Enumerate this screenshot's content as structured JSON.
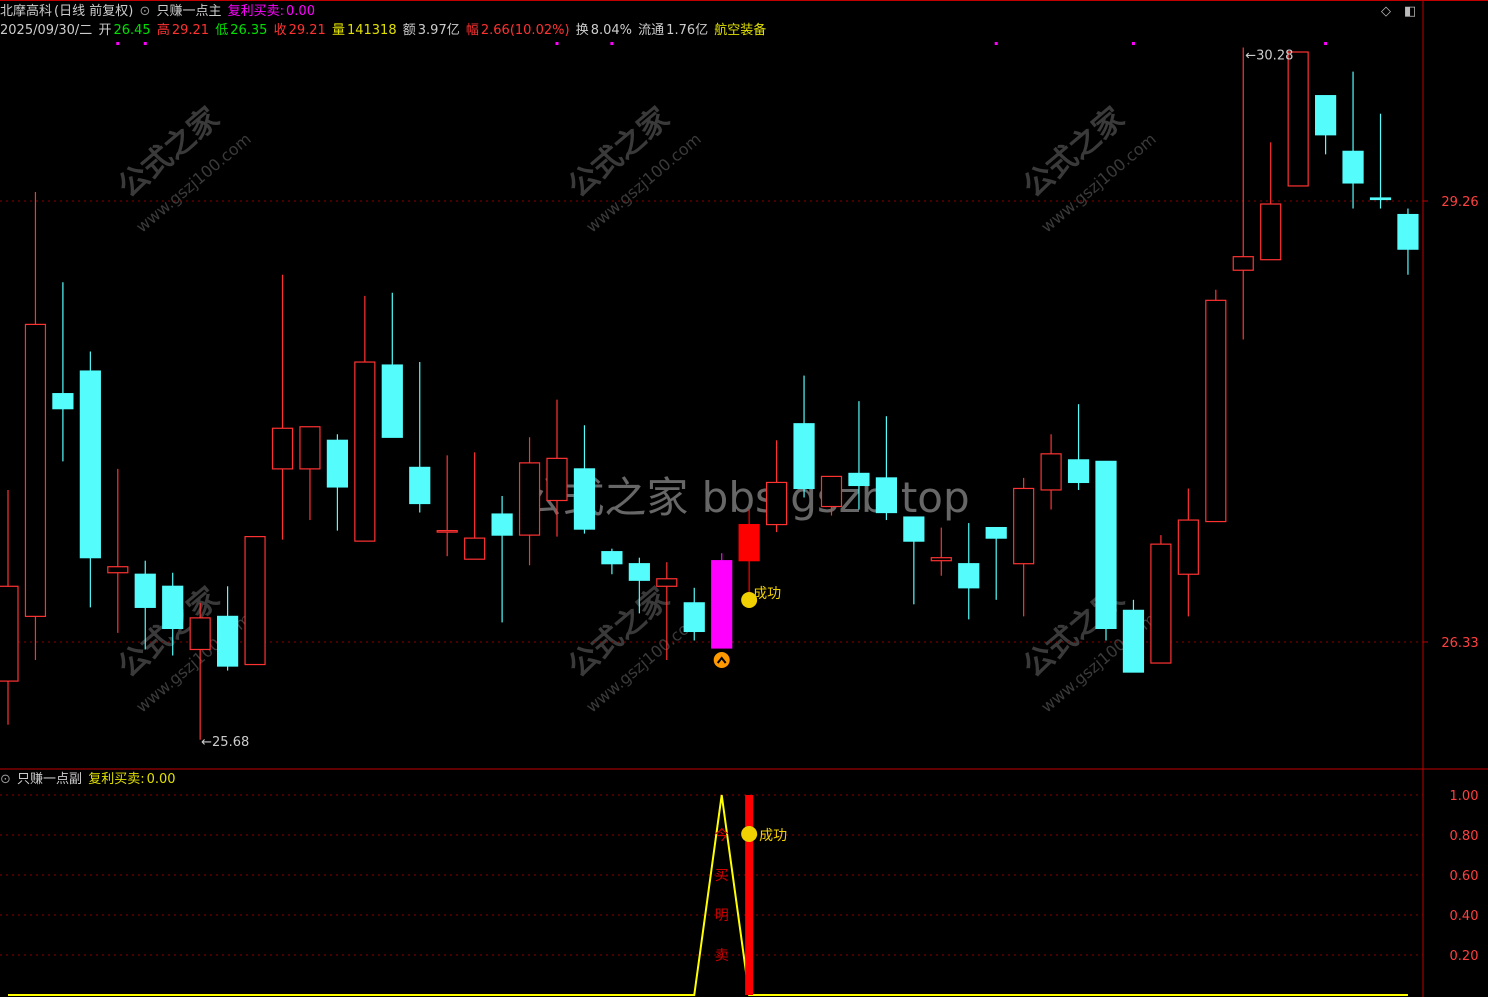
{
  "header": {
    "stock_name": "北摩高科",
    "period": "(日线 前复权)",
    "indicator_main": "只赚一点主",
    "signal_label": "复利买卖:",
    "signal_value": "0.00",
    "date": "2025/09/30/二",
    "open_label": "开",
    "open": "26.45",
    "high_label": "高",
    "high": "29.21",
    "low_label": "低",
    "low": "26.35",
    "close_label": "收",
    "close": "29.21",
    "volume_label": "量",
    "volume": "141318",
    "amount_label": "额",
    "amount": "3.97亿",
    "change_label": "幅",
    "change": "2.66(10.02%)",
    "turnover_label": "换",
    "turnover": "8.04%",
    "float_label": "流通",
    "float": "1.76亿",
    "sector": "航空装备"
  },
  "sub_header": {
    "indicator_sub": "只赚一点副",
    "signal_label": "复利买卖:",
    "signal_value": "0.00"
  },
  "icons": {
    "top_right": [
      "diamond-icon",
      "window-icon"
    ],
    "buy_signal": "chevron-up-circle-icon",
    "success": "smiley-icon"
  },
  "colors": {
    "up": "#ff3232",
    "down": "#54fcfc",
    "signal_candle": "#ff00ff",
    "signal_bar": "#ff0000",
    "line": "#ffff00",
    "grid": "#8b0000",
    "marker": "#ff00ff"
  },
  "watermark": {
    "small": "公式之家 www.gszj100.com",
    "center": "公式之家 bbs.gszb.top"
  },
  "chart_data": [
    {
      "type": "candlestick",
      "axis_labels": [
        "29.26",
        "26.33"
      ],
      "annotations": {
        "max_label": "30.28",
        "min_label": "25.68",
        "success_text": "成功"
      },
      "signal_candle_index": 26,
      "filled_up_index": 27,
      "marker_indices": [
        4,
        5,
        20,
        22,
        36,
        41,
        48
      ],
      "ohlc": [
        [
          26.07,
          27.34,
          25.78,
          26.7
        ],
        [
          26.5,
          29.32,
          26.21,
          28.44
        ],
        [
          27.98,
          28.72,
          27.53,
          27.88
        ],
        [
          28.13,
          28.26,
          26.56,
          26.89
        ],
        [
          26.79,
          27.48,
          26.39,
          26.83
        ],
        [
          26.78,
          26.87,
          26.28,
          26.56
        ],
        [
          26.7,
          26.79,
          26.24,
          26.42
        ],
        [
          26.28,
          26.59,
          25.68,
          26.49
        ],
        [
          26.5,
          26.7,
          26.14,
          26.17
        ],
        [
          26.18,
          27.03,
          26.18,
          27.03
        ],
        [
          27.48,
          28.77,
          27.01,
          27.75
        ],
        [
          27.48,
          27.76,
          27.14,
          27.76
        ],
        [
          27.67,
          27.71,
          27.07,
          27.36
        ],
        [
          27.0,
          28.63,
          27.0,
          28.19
        ],
        [
          28.17,
          28.65,
          27.69,
          27.69
        ],
        [
          27.49,
          28.19,
          27.19,
          27.25
        ],
        [
          27.06,
          27.57,
          26.9,
          27.07
        ],
        [
          26.88,
          27.59,
          26.88,
          27.02
        ],
        [
          27.18,
          27.3,
          26.46,
          27.04
        ],
        [
          27.04,
          27.69,
          26.84,
          27.52
        ],
        [
          27.27,
          27.94,
          27.03,
          27.55
        ],
        [
          27.48,
          27.77,
          27.05,
          27.08
        ],
        [
          26.93,
          26.95,
          26.78,
          26.85
        ],
        [
          26.85,
          26.89,
          26.52,
          26.74
        ],
        [
          26.7,
          26.86,
          26.21,
          26.75
        ],
        [
          26.59,
          26.69,
          26.34,
          26.4
        ],
        [
          26.29,
          26.92,
          26.29,
          26.87
        ],
        [
          26.87,
          27.21,
          26.61,
          27.11
        ],
        [
          27.11,
          27.67,
          27.06,
          27.39
        ],
        [
          27.78,
          28.1,
          27.29,
          27.35
        ],
        [
          27.23,
          27.43,
          27.17,
          27.43
        ],
        [
          27.45,
          27.93,
          27.21,
          27.37
        ],
        [
          27.42,
          27.83,
          27.14,
          27.19
        ],
        [
          27.16,
          27.16,
          26.58,
          27.0
        ],
        [
          26.87,
          27.09,
          26.77,
          26.89
        ],
        [
          26.85,
          27.12,
          26.48,
          26.69
        ],
        [
          27.09,
          27.09,
          26.61,
          27.02
        ],
        [
          26.85,
          27.42,
          26.5,
          27.35
        ],
        [
          27.34,
          27.71,
          27.21,
          27.58
        ],
        [
          27.54,
          27.91,
          27.34,
          27.39
        ],
        [
          27.53,
          27.53,
          26.34,
          26.42
        ],
        [
          26.54,
          26.61,
          26.13,
          26.13
        ],
        [
          26.19,
          27.04,
          26.19,
          26.98
        ],
        [
          26.78,
          27.35,
          26.5,
          27.14
        ],
        [
          27.13,
          28.67,
          27.13,
          28.6
        ],
        [
          28.8,
          30.28,
          28.34,
          28.89
        ],
        [
          28.87,
          29.65,
          28.87,
          29.24
        ],
        [
          29.36,
          30.25,
          29.36,
          30.25
        ],
        [
          29.96,
          29.96,
          29.57,
          29.7
        ],
        [
          29.59,
          30.12,
          29.21,
          29.38
        ],
        [
          29.28,
          29.84,
          29.21,
          29.27
        ],
        [
          29.17,
          29.21,
          28.77,
          28.94
        ]
      ]
    },
    {
      "type": "line",
      "axis_labels": [
        "1.00",
        "0.80",
        "0.60",
        "0.40",
        "0.20"
      ],
      "ylim": [
        0,
        1
      ],
      "line_values_nonzero": {
        "26": 1.0
      },
      "bar_index": 27,
      "bar_value": 1.0,
      "vertical_text": [
        "今",
        "买",
        "明",
        "卖"
      ],
      "success_text": "成功"
    }
  ]
}
